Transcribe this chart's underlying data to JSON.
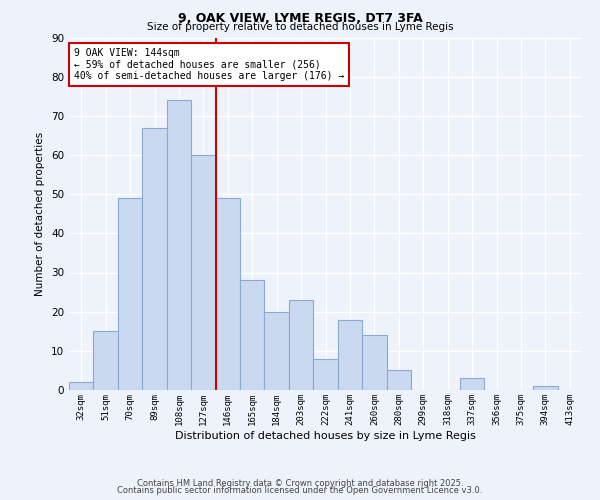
{
  "title": "9, OAK VIEW, LYME REGIS, DT7 3FA",
  "subtitle": "Size of property relative to detached houses in Lyme Regis",
  "xlabel": "Distribution of detached houses by size in Lyme Regis",
  "ylabel": "Number of detached properties",
  "bar_labels": [
    "32sqm",
    "51sqm",
    "70sqm",
    "89sqm",
    "108sqm",
    "127sqm",
    "146sqm",
    "165sqm",
    "184sqm",
    "203sqm",
    "222sqm",
    "241sqm",
    "260sqm",
    "280sqm",
    "299sqm",
    "318sqm",
    "337sqm",
    "356sqm",
    "375sqm",
    "394sqm",
    "413sqm"
  ],
  "bar_values": [
    2,
    15,
    49,
    67,
    74,
    60,
    49,
    28,
    20,
    23,
    8,
    18,
    14,
    5,
    0,
    0,
    3,
    0,
    0,
    1,
    0
  ],
  "bar_color": "#c9d9f0",
  "bar_edge_color": "#8aaad4",
  "highlight_color": "#cc0000",
  "annotation_title": "9 OAK VIEW: 144sqm",
  "annotation_line1": "← 59% of detached houses are smaller (256)",
  "annotation_line2": "40% of semi-detached houses are larger (176) →",
  "annotation_box_color": "#cc0000",
  "ylim": [
    0,
    90
  ],
  "yticks": [
    0,
    10,
    20,
    30,
    40,
    50,
    60,
    70,
    80,
    90
  ],
  "footnote1": "Contains HM Land Registry data © Crown copyright and database right 2025.",
  "footnote2": "Contains public sector information licensed under the Open Government Licence v3.0.",
  "bg_color": "#eef2fb",
  "grid_color": "#ffffff"
}
